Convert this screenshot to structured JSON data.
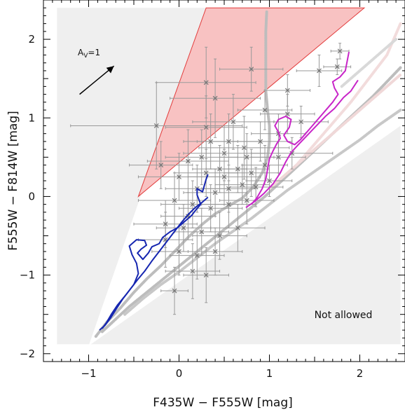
{
  "chart_data": {
    "type": "scatter",
    "title": "",
    "xlabel": "F435W − F555W [mag]",
    "ylabel": "F555W − F814W [mag]",
    "xlim": [
      -1.5,
      2.5
    ],
    "ylim": [
      -2.1,
      2.5
    ],
    "x_ticks": [
      -1,
      0,
      1,
      2
    ],
    "y_ticks": [
      -2,
      -1,
      0,
      1,
      2
    ],
    "x_tick_labels": [
      "−1",
      "0",
      "1",
      "2"
    ],
    "y_tick_labels": [
      "−2",
      "−1",
      "0",
      "1",
      "2"
    ],
    "grid": false,
    "annotations": {
      "not_allowed": "Not allowed",
      "extinction_label": "A",
      "extinction_sub": "V",
      "extinction_value": "=1",
      "extinction_vector": {
        "from": [
          -1.1,
          1.3
        ],
        "to": [
          -0.72,
          1.66
        ]
      }
    },
    "regions": {
      "background_box": {
        "x": [
          -1.35,
          2.45
        ],
        "y": [
          -1.88,
          2.4
        ],
        "color": "#efefef"
      },
      "allowed_wedge": [
        [
          -1.0,
          -1.9
        ],
        [
          0.3,
          2.4
        ],
        [
          2.45,
          2.4
        ],
        [
          2.45,
          0.9
        ]
      ],
      "red_triangle": [
        [
          -0.45,
          0.0
        ],
        [
          0.3,
          2.4
        ],
        [
          2.05,
          2.4
        ]
      ],
      "red_fill": "#f8c2c2",
      "red_edge": "#e23b3b"
    },
    "tracks": [
      {
        "color": "#1626b0",
        "points": [
          [
            -0.85,
            -1.68
          ],
          [
            -0.8,
            -1.6
          ],
          [
            -0.75,
            -1.5
          ],
          [
            -0.68,
            -1.38
          ],
          [
            -0.58,
            -1.24
          ],
          [
            -0.5,
            -1.12
          ],
          [
            -0.45,
            -0.98
          ],
          [
            -0.47,
            -0.85
          ],
          [
            -0.52,
            -0.74
          ],
          [
            -0.55,
            -0.63
          ],
          [
            -0.47,
            -0.55
          ],
          [
            -0.38,
            -0.56
          ],
          [
            -0.36,
            -0.62
          ],
          [
            -0.42,
            -0.67
          ],
          [
            -0.46,
            -0.72
          ],
          [
            -0.4,
            -0.8
          ],
          [
            -0.34,
            -0.72
          ],
          [
            -0.3,
            -0.64
          ],
          [
            -0.22,
            -0.6
          ],
          [
            -0.18,
            -0.52
          ],
          [
            -0.1,
            -0.45
          ],
          [
            -0.02,
            -0.4
          ],
          [
            0.06,
            -0.32
          ],
          [
            0.14,
            -0.24
          ],
          [
            0.18,
            -0.18
          ],
          [
            0.24,
            -0.1
          ],
          [
            0.2,
            0.02
          ],
          [
            0.2,
            0.1
          ],
          [
            0.26,
            0.06
          ],
          [
            0.3,
            0.22
          ],
          [
            0.32,
            0.28
          ]
        ]
      },
      {
        "color": "#1626b0",
        "points": [
          [
            -0.88,
            -1.7
          ],
          [
            -0.82,
            -1.64
          ],
          [
            -0.76,
            -1.55
          ],
          [
            -0.7,
            -1.44
          ],
          [
            -0.62,
            -1.3
          ],
          [
            -0.54,
            -1.18
          ],
          [
            -0.46,
            -1.06
          ],
          [
            -0.38,
            -0.95
          ],
          [
            -0.3,
            -0.82
          ],
          [
            -0.22,
            -0.7
          ],
          [
            -0.14,
            -0.58
          ],
          [
            -0.06,
            -0.46
          ],
          [
            0.02,
            -0.34
          ],
          [
            0.1,
            -0.23
          ],
          [
            0.18,
            -0.14
          ],
          [
            0.26,
            -0.07
          ],
          [
            0.32,
            -0.01
          ]
        ]
      },
      {
        "color": "#c825c8",
        "points": [
          [
            0.8,
            -0.1
          ],
          [
            0.86,
            -0.02
          ],
          [
            0.92,
            0.1
          ],
          [
            0.96,
            0.22
          ],
          [
            0.98,
            0.35
          ],
          [
            1.0,
            0.48
          ],
          [
            1.04,
            0.58
          ],
          [
            1.08,
            0.67
          ],
          [
            1.12,
            0.74
          ],
          [
            1.1,
            0.82
          ],
          [
            1.06,
            0.9
          ],
          [
            1.1,
            0.98
          ],
          [
            1.18,
            1.02
          ],
          [
            1.24,
            0.98
          ],
          [
            1.22,
            0.88
          ],
          [
            1.16,
            0.78
          ],
          [
            1.2,
            0.7
          ],
          [
            1.28,
            0.66
          ],
          [
            1.34,
            0.72
          ],
          [
            1.4,
            0.8
          ],
          [
            1.46,
            0.88
          ],
          [
            1.52,
            0.96
          ],
          [
            1.58,
            1.04
          ],
          [
            1.64,
            1.12
          ],
          [
            1.7,
            1.2
          ],
          [
            1.76,
            1.3
          ],
          [
            1.72,
            1.38
          ],
          [
            1.7,
            1.46
          ],
          [
            1.78,
            1.52
          ],
          [
            1.84,
            1.6
          ],
          [
            1.88,
            1.84
          ]
        ]
      },
      {
        "color": "#c825c8",
        "points": [
          [
            0.74,
            -0.14
          ],
          [
            0.84,
            -0.06
          ],
          [
            0.94,
            0.04
          ],
          [
            1.04,
            0.16
          ],
          [
            1.12,
            0.3
          ],
          [
            1.18,
            0.44
          ],
          [
            1.24,
            0.56
          ],
          [
            1.32,
            0.66
          ],
          [
            1.42,
            0.78
          ],
          [
            1.52,
            0.9
          ],
          [
            1.62,
            1.02
          ],
          [
            1.72,
            1.12
          ],
          [
            1.82,
            1.26
          ],
          [
            1.9,
            1.34
          ],
          [
            1.98,
            1.48
          ]
        ]
      }
    ],
    "grey_curves": [
      {
        "color": "#bdbdbd",
        "points": [
          [
            -0.92,
            -1.78
          ],
          [
            -0.8,
            -1.6
          ],
          [
            -0.65,
            -1.42
          ],
          [
            -0.5,
            -1.22
          ],
          [
            -0.35,
            -1.04
          ],
          [
            -0.2,
            -0.88
          ],
          [
            -0.05,
            -0.7
          ],
          [
            0.1,
            -0.52
          ],
          [
            0.25,
            -0.36
          ],
          [
            0.4,
            -0.22
          ],
          [
            0.55,
            -0.12
          ],
          [
            0.7,
            -0.02
          ],
          [
            0.82,
            0.12
          ],
          [
            0.92,
            0.3
          ],
          [
            0.98,
            0.5
          ],
          [
            1.0,
            0.7
          ],
          [
            1.0,
            0.9
          ],
          [
            0.98,
            1.1
          ],
          [
            0.96,
            1.35
          ],
          [
            0.96,
            1.6
          ],
          [
            0.96,
            1.85
          ],
          [
            0.96,
            2.1
          ],
          [
            0.97,
            2.35
          ]
        ]
      },
      {
        "color": "#bdbdbd",
        "points": [
          [
            -0.85,
            -1.72
          ],
          [
            -0.7,
            -1.56
          ],
          [
            -0.55,
            -1.4
          ],
          [
            -0.4,
            -1.26
          ],
          [
            -0.25,
            -1.12
          ],
          [
            -0.1,
            -0.98
          ],
          [
            0.05,
            -0.84
          ],
          [
            0.2,
            -0.7
          ],
          [
            0.35,
            -0.56
          ],
          [
            0.5,
            -0.42
          ],
          [
            0.65,
            -0.28
          ],
          [
            0.8,
            -0.14
          ],
          [
            0.95,
            0.0
          ],
          [
            1.1,
            0.16
          ],
          [
            1.25,
            0.32
          ],
          [
            1.4,
            0.48
          ],
          [
            1.55,
            0.64
          ],
          [
            1.7,
            0.8
          ],
          [
            1.85,
            0.96
          ],
          [
            2.0,
            1.12
          ],
          [
            2.15,
            1.28
          ],
          [
            2.3,
            1.46
          ],
          [
            2.45,
            1.64
          ]
        ]
      },
      {
        "color": "#c8c8c8",
        "points": [
          [
            -0.6,
            -1.5
          ],
          [
            -0.4,
            -1.3
          ],
          [
            -0.2,
            -1.12
          ],
          [
            0.0,
            -0.96
          ],
          [
            0.2,
            -0.78
          ],
          [
            0.4,
            -0.6
          ],
          [
            0.6,
            -0.44
          ],
          [
            0.8,
            -0.28
          ],
          [
            1.0,
            -0.1
          ],
          [
            1.2,
            0.08
          ],
          [
            1.4,
            0.24
          ],
          [
            1.6,
            0.4
          ],
          [
            1.8,
            0.56
          ],
          [
            2.0,
            0.72
          ],
          [
            2.2,
            0.9
          ],
          [
            2.45,
            1.1
          ]
        ]
      },
      {
        "color": "#f0d8d8",
        "points": [
          [
            1.0,
            0.1
          ],
          [
            1.2,
            0.3
          ],
          [
            1.4,
            0.5
          ],
          [
            1.6,
            0.7
          ],
          [
            1.8,
            0.9
          ],
          [
            2.0,
            1.1
          ],
          [
            2.2,
            1.3
          ],
          [
            2.45,
            1.55
          ]
        ]
      },
      {
        "color": "#f2dcdc",
        "points": [
          [
            1.3,
            0.4
          ],
          [
            1.6,
            0.8
          ],
          [
            1.9,
            1.2
          ],
          [
            2.1,
            1.5
          ],
          [
            2.3,
            1.8
          ],
          [
            2.45,
            2.2
          ]
        ]
      },
      {
        "color": "#d9d9d9",
        "points": [
          [
            1.8,
            1.4
          ],
          [
            2.0,
            1.6
          ],
          [
            2.2,
            1.8
          ],
          [
            2.4,
            2.0
          ]
        ]
      }
    ],
    "points": [
      {
        "x": 0.3,
        "y": 1.45,
        "xerr": 0.55,
        "yerr": 0.45
      },
      {
        "x": 0.4,
        "y": 1.25,
        "xerr": 0.5,
        "yerr": 0.5
      },
      {
        "x": 0.8,
        "y": 1.62,
        "xerr": 0.35,
        "yerr": 0.28
      },
      {
        "x": 1.55,
        "y": 1.6,
        "xerr": 0.25,
        "yerr": 0.2
      },
      {
        "x": 1.75,
        "y": 1.65,
        "xerr": 0.15,
        "yerr": 0.1
      },
      {
        "x": 1.78,
        "y": 1.85,
        "xerr": 0.1,
        "yerr": 0.1
      },
      {
        "x": 1.2,
        "y": 1.35,
        "xerr": 0.25,
        "yerr": 0.2
      },
      {
        "x": 1.2,
        "y": 1.05,
        "xerr": 0.3,
        "yerr": 0.25
      },
      {
        "x": 1.35,
        "y": 0.95,
        "xerr": 0.3,
        "yerr": 0.2
      },
      {
        "x": 0.95,
        "y": 1.1,
        "xerr": 0.3,
        "yerr": 0.25
      },
      {
        "x": -0.25,
        "y": 0.9,
        "xerr": 0.95,
        "yerr": 0.55
      },
      {
        "x": 0.3,
        "y": 0.88,
        "xerr": 0.45,
        "yerr": 0.4
      },
      {
        "x": 0.6,
        "y": 0.95,
        "xerr": 0.45,
        "yerr": 0.35
      },
      {
        "x": 0.72,
        "y": 0.62,
        "xerr": 0.5,
        "yerr": 0.4
      },
      {
        "x": 0.5,
        "y": 0.55,
        "xerr": 0.45,
        "yerr": 0.35
      },
      {
        "x": 0.25,
        "y": 0.5,
        "xerr": 0.4,
        "yerr": 0.35
      },
      {
        "x": 0.1,
        "y": 0.45,
        "xerr": 0.45,
        "yerr": 0.4
      },
      {
        "x": -0.2,
        "y": 0.4,
        "xerr": 0.35,
        "yerr": 0.3
      },
      {
        "x": 0.0,
        "y": 0.25,
        "xerr": 0.45,
        "yerr": 0.3
      },
      {
        "x": 0.3,
        "y": 0.3,
        "xerr": 0.35,
        "yerr": 0.3
      },
      {
        "x": 0.5,
        "y": 0.25,
        "xerr": 0.4,
        "yerr": 0.35
      },
      {
        "x": 0.65,
        "y": 0.35,
        "xerr": 0.35,
        "yerr": 0.3
      },
      {
        "x": 0.8,
        "y": 0.3,
        "xerr": 0.3,
        "yerr": 0.3
      },
      {
        "x": 0.95,
        "y": 0.4,
        "xerr": 0.25,
        "yerr": 0.25
      },
      {
        "x": 1.1,
        "y": 0.5,
        "xerr": 0.3,
        "yerr": 0.2
      },
      {
        "x": 1.25,
        "y": 0.55,
        "xerr": 0.45,
        "yerr": 0.2
      },
      {
        "x": 0.2,
        "y": 0.1,
        "xerr": 0.35,
        "yerr": 0.3
      },
      {
        "x": 0.4,
        "y": 0.05,
        "xerr": 0.35,
        "yerr": 0.3
      },
      {
        "x": 0.55,
        "y": 0.1,
        "xerr": 0.3,
        "yerr": 0.3
      },
      {
        "x": 0.7,
        "y": 0.15,
        "xerr": 0.3,
        "yerr": 0.25
      },
      {
        "x": 0.85,
        "y": 0.12,
        "xerr": 0.3,
        "yerr": 0.25
      },
      {
        "x": 1.0,
        "y": 0.2,
        "xerr": 0.25,
        "yerr": 0.2
      },
      {
        "x": -0.05,
        "y": -0.05,
        "xerr": 0.4,
        "yerr": 0.35
      },
      {
        "x": 0.15,
        "y": -0.1,
        "xerr": 0.35,
        "yerr": 0.3
      },
      {
        "x": 0.35,
        "y": -0.15,
        "xerr": 0.35,
        "yerr": 0.3
      },
      {
        "x": 0.55,
        "y": -0.1,
        "xerr": 0.3,
        "yerr": 0.3
      },
      {
        "x": 0.75,
        "y": -0.05,
        "xerr": 0.3,
        "yerr": 0.3
      },
      {
        "x": -0.15,
        "y": -0.35,
        "xerr": 0.35,
        "yerr": 0.3
      },
      {
        "x": 0.05,
        "y": -0.4,
        "xerr": 0.3,
        "yerr": 0.3
      },
      {
        "x": 0.25,
        "y": -0.45,
        "xerr": 0.3,
        "yerr": 0.3
      },
      {
        "x": 0.45,
        "y": -0.5,
        "xerr": 0.3,
        "yerr": 0.3
      },
      {
        "x": 0.65,
        "y": -0.4,
        "xerr": 0.3,
        "yerr": 0.3
      },
      {
        "x": 0.0,
        "y": -0.7,
        "xerr": 0.3,
        "yerr": 0.3
      },
      {
        "x": 0.2,
        "y": -0.75,
        "xerr": 0.3,
        "yerr": 0.3
      },
      {
        "x": 0.4,
        "y": -0.7,
        "xerr": 0.3,
        "yerr": 0.3
      },
      {
        "x": -0.05,
        "y": -1.2,
        "xerr": 0.15,
        "yerr": 0.3
      },
      {
        "x": 0.15,
        "y": -0.95,
        "xerr": 0.3,
        "yerr": 0.35
      },
      {
        "x": 0.3,
        "y": -1.0,
        "xerr": 0.25,
        "yerr": 0.35
      },
      {
        "x": -0.15,
        "y": -0.55,
        "xerr": 0.3,
        "yerr": 0.35
      },
      {
        "x": 0.1,
        "y": -0.25,
        "xerr": 0.3,
        "yerr": 0.3
      },
      {
        "x": 0.45,
        "y": 0.35,
        "xerr": 0.3,
        "yerr": 0.3
      },
      {
        "x": 0.9,
        "y": 0.7,
        "xerr": 0.35,
        "yerr": 0.25
      },
      {
        "x": 1.1,
        "y": 0.8,
        "xerr": 0.3,
        "yerr": 0.25
      },
      {
        "x": 0.55,
        "y": 0.7,
        "xerr": 0.35,
        "yerr": 0.35
      },
      {
        "x": 0.35,
        "y": 0.7,
        "xerr": 0.3,
        "yerr": 0.35
      },
      {
        "x": 0.75,
        "y": 0.5,
        "xerr": 0.3,
        "yerr": 0.3
      }
    ],
    "colors": {
      "point": "#777777",
      "errorbar": "#999999",
      "arrow": "#000000",
      "axis": "#000000"
    }
  }
}
